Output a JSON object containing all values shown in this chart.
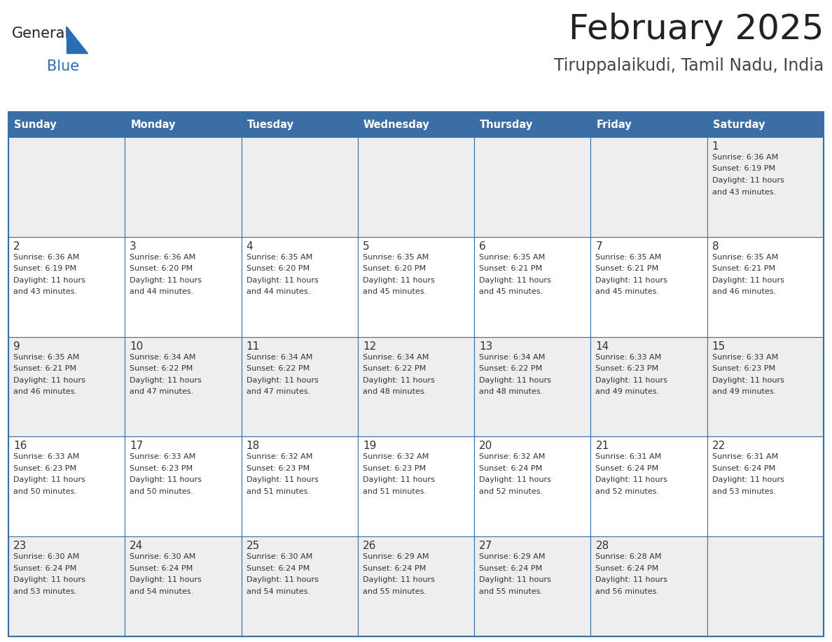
{
  "title": "February 2025",
  "subtitle": "Tiruppalaikudi, Tamil Nadu, India",
  "days_of_week": [
    "Sunday",
    "Monday",
    "Tuesday",
    "Wednesday",
    "Thursday",
    "Friday",
    "Saturday"
  ],
  "header_bg_color": "#3a6ea5",
  "header_text_color": "#ffffff",
  "cell_bg_white": "#ffffff",
  "cell_bg_gray": "#eeeeee",
  "border_color": "#3a6ea5",
  "day_number_color": "#333333",
  "text_color": "#333333",
  "title_color": "#222222",
  "subtitle_color": "#444444",
  "logo_general_color": "#222222",
  "logo_blue_color": "#2a6db5",
  "calendar_data": [
    [
      {
        "day": null,
        "info": null
      },
      {
        "day": null,
        "info": null
      },
      {
        "day": null,
        "info": null
      },
      {
        "day": null,
        "info": null
      },
      {
        "day": null,
        "info": null
      },
      {
        "day": null,
        "info": null
      },
      {
        "day": 1,
        "info": "Sunrise: 6:36 AM\nSunset: 6:19 PM\nDaylight: 11 hours\nand 43 minutes."
      }
    ],
    [
      {
        "day": 2,
        "info": "Sunrise: 6:36 AM\nSunset: 6:19 PM\nDaylight: 11 hours\nand 43 minutes."
      },
      {
        "day": 3,
        "info": "Sunrise: 6:36 AM\nSunset: 6:20 PM\nDaylight: 11 hours\nand 44 minutes."
      },
      {
        "day": 4,
        "info": "Sunrise: 6:35 AM\nSunset: 6:20 PM\nDaylight: 11 hours\nand 44 minutes."
      },
      {
        "day": 5,
        "info": "Sunrise: 6:35 AM\nSunset: 6:20 PM\nDaylight: 11 hours\nand 45 minutes."
      },
      {
        "day": 6,
        "info": "Sunrise: 6:35 AM\nSunset: 6:21 PM\nDaylight: 11 hours\nand 45 minutes."
      },
      {
        "day": 7,
        "info": "Sunrise: 6:35 AM\nSunset: 6:21 PM\nDaylight: 11 hours\nand 45 minutes."
      },
      {
        "day": 8,
        "info": "Sunrise: 6:35 AM\nSunset: 6:21 PM\nDaylight: 11 hours\nand 46 minutes."
      }
    ],
    [
      {
        "day": 9,
        "info": "Sunrise: 6:35 AM\nSunset: 6:21 PM\nDaylight: 11 hours\nand 46 minutes."
      },
      {
        "day": 10,
        "info": "Sunrise: 6:34 AM\nSunset: 6:22 PM\nDaylight: 11 hours\nand 47 minutes."
      },
      {
        "day": 11,
        "info": "Sunrise: 6:34 AM\nSunset: 6:22 PM\nDaylight: 11 hours\nand 47 minutes."
      },
      {
        "day": 12,
        "info": "Sunrise: 6:34 AM\nSunset: 6:22 PM\nDaylight: 11 hours\nand 48 minutes."
      },
      {
        "day": 13,
        "info": "Sunrise: 6:34 AM\nSunset: 6:22 PM\nDaylight: 11 hours\nand 48 minutes."
      },
      {
        "day": 14,
        "info": "Sunrise: 6:33 AM\nSunset: 6:23 PM\nDaylight: 11 hours\nand 49 minutes."
      },
      {
        "day": 15,
        "info": "Sunrise: 6:33 AM\nSunset: 6:23 PM\nDaylight: 11 hours\nand 49 minutes."
      }
    ],
    [
      {
        "day": 16,
        "info": "Sunrise: 6:33 AM\nSunset: 6:23 PM\nDaylight: 11 hours\nand 50 minutes."
      },
      {
        "day": 17,
        "info": "Sunrise: 6:33 AM\nSunset: 6:23 PM\nDaylight: 11 hours\nand 50 minutes."
      },
      {
        "day": 18,
        "info": "Sunrise: 6:32 AM\nSunset: 6:23 PM\nDaylight: 11 hours\nand 51 minutes."
      },
      {
        "day": 19,
        "info": "Sunrise: 6:32 AM\nSunset: 6:23 PM\nDaylight: 11 hours\nand 51 minutes."
      },
      {
        "day": 20,
        "info": "Sunrise: 6:32 AM\nSunset: 6:24 PM\nDaylight: 11 hours\nand 52 minutes."
      },
      {
        "day": 21,
        "info": "Sunrise: 6:31 AM\nSunset: 6:24 PM\nDaylight: 11 hours\nand 52 minutes."
      },
      {
        "day": 22,
        "info": "Sunrise: 6:31 AM\nSunset: 6:24 PM\nDaylight: 11 hours\nand 53 minutes."
      }
    ],
    [
      {
        "day": 23,
        "info": "Sunrise: 6:30 AM\nSunset: 6:24 PM\nDaylight: 11 hours\nand 53 minutes."
      },
      {
        "day": 24,
        "info": "Sunrise: 6:30 AM\nSunset: 6:24 PM\nDaylight: 11 hours\nand 54 minutes."
      },
      {
        "day": 25,
        "info": "Sunrise: 6:30 AM\nSunset: 6:24 PM\nDaylight: 11 hours\nand 54 minutes."
      },
      {
        "day": 26,
        "info": "Sunrise: 6:29 AM\nSunset: 6:24 PM\nDaylight: 11 hours\nand 55 minutes."
      },
      {
        "day": 27,
        "info": "Sunrise: 6:29 AM\nSunset: 6:24 PM\nDaylight: 11 hours\nand 55 minutes."
      },
      {
        "day": 28,
        "info": "Sunrise: 6:28 AM\nSunset: 6:24 PM\nDaylight: 11 hours\nand 56 minutes."
      },
      {
        "day": null,
        "info": null
      }
    ]
  ]
}
